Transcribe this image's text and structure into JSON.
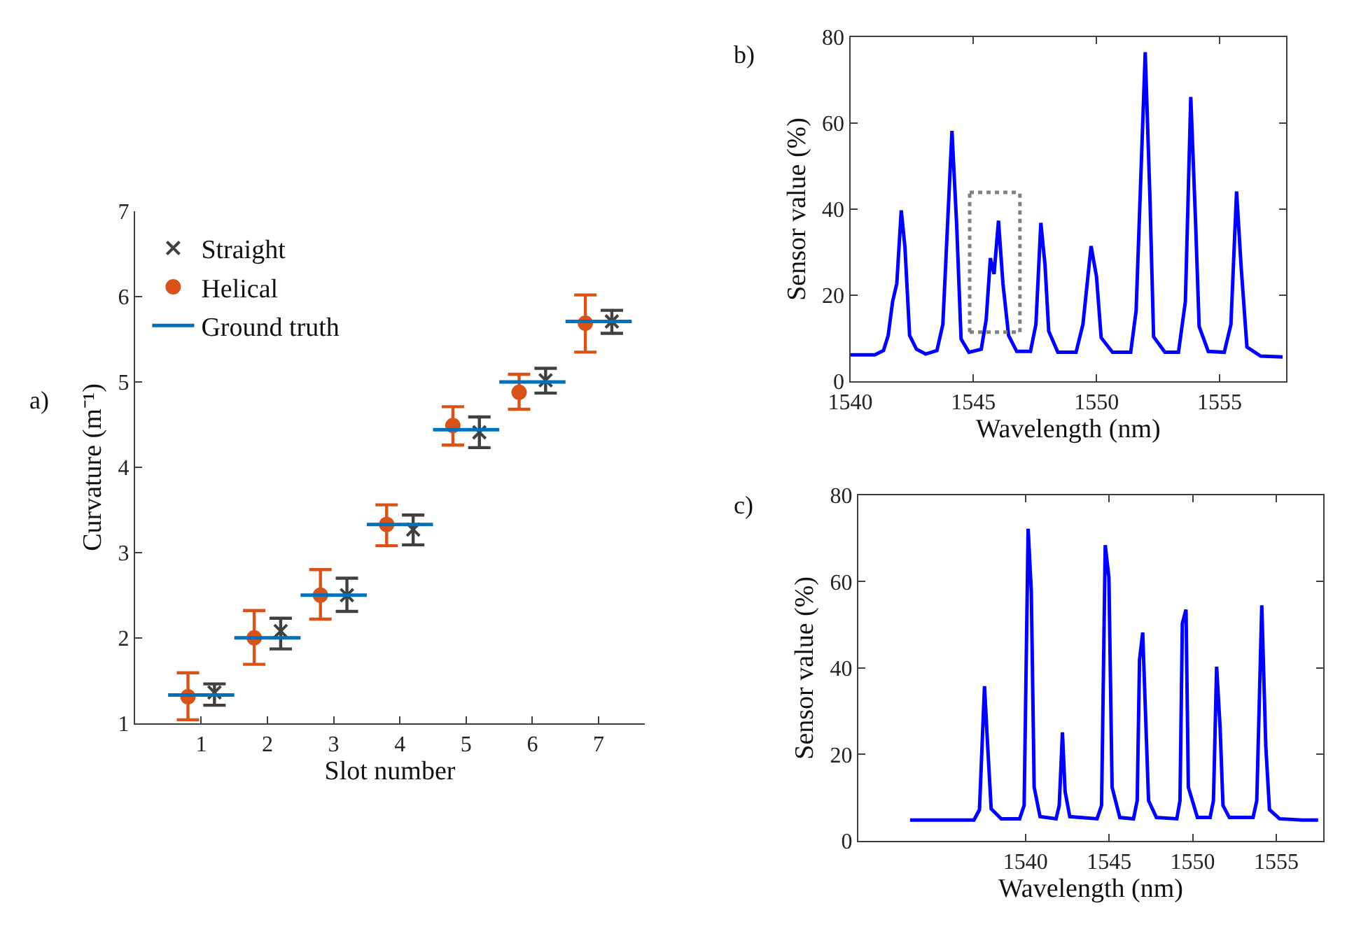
{
  "chart_data": [
    {
      "type": "scatter",
      "xlabel": "Slot number",
      "ylabel": "Curvature (m⁻¹)",
      "annotations": [
        "a)"
      ],
      "xlim": [
        0,
        7.7
      ],
      "xticks": [
        1,
        2,
        3,
        4,
        5,
        6,
        7
      ],
      "ylim": [
        1,
        7
      ],
      "yticks": [
        1,
        2,
        3,
        4,
        5,
        6,
        7
      ],
      "legend": "top left",
      "series": [
        {
          "name": "Straight",
          "type": "scatter",
          "marker": "cross",
          "color": "#404040",
          "x": [
            1.2,
            2.2,
            3.2,
            4.2,
            5.2,
            6.2,
            7.2
          ],
          "values": [
            1.36,
            2.08,
            2.5,
            3.27,
            4.41,
            5.02,
            5.71
          ],
          "errors": [
            [
              1.21,
              1.46
            ],
            [
              1.87,
              2.23
            ],
            [
              2.31,
              2.7
            ],
            [
              3.09,
              3.44
            ],
            [
              4.23,
              4.59
            ],
            [
              4.87,
              5.16
            ],
            [
              5.57,
              5.84
            ]
          ]
        },
        {
          "name": "Helical",
          "type": "scatter",
          "marker": "circle",
          "color": "#d95319",
          "x": [
            0.8,
            1.8,
            2.8,
            3.8,
            4.8,
            5.8,
            6.8
          ],
          "values": [
            1.31,
            2.0,
            2.5,
            3.33,
            4.49,
            4.88,
            5.69
          ],
          "errors": [
            [
              1.04,
              1.59
            ],
            [
              1.69,
              2.32
            ],
            [
              2.22,
              2.8
            ],
            [
              3.08,
              3.56
            ],
            [
              4.26,
              4.71
            ],
            [
              4.68,
              5.09
            ],
            [
              5.35,
              6.02
            ]
          ]
        },
        {
          "name": "Ground truth",
          "type": "line",
          "color": "#0072bd",
          "x": [
            0.5,
            1.5
          ],
          "values": [
            1.33,
            1.33
          ]
        },
        {
          "type": "line",
          "color": "#0072bd",
          "x": [
            1.5,
            2.5
          ],
          "values": [
            2.0,
            2.0
          ]
        },
        {
          "type": "line",
          "color": "#0072bd",
          "x": [
            2.5,
            3.5
          ],
          "values": [
            2.5,
            2.5
          ]
        },
        {
          "type": "line",
          "color": "#0072bd",
          "x": [
            3.5,
            4.5
          ],
          "values": [
            3.33,
            3.33
          ]
        },
        {
          "type": "line",
          "color": "#0072bd",
          "x": [
            4.5,
            5.5
          ],
          "values": [
            4.44,
            4.44
          ]
        },
        {
          "type": "line",
          "color": "#0072bd",
          "x": [
            5.5,
            6.5
          ],
          "values": [
            5.0,
            5.0
          ]
        },
        {
          "type": "line",
          "color": "#0072bd",
          "x": [
            6.5,
            7.5
          ],
          "values": [
            5.71,
            5.71
          ]
        }
      ]
    },
    {
      "type": "line",
      "xlabel": "Wavelength (nm)",
      "ylabel": "Sensor value (%)",
      "annotations": [
        "b)"
      ],
      "xlim": [
        1540,
        1557.7
      ],
      "xticks": [
        1540,
        1545,
        1550,
        1555
      ],
      "ylim": [
        0,
        80
      ],
      "yticks": [
        0,
        20,
        40,
        60,
        80
      ],
      "series": [
        {
          "type": "line",
          "color": "#0000ff",
          "x": [
            1540.0,
            1541.0,
            1541.35,
            1541.54,
            1541.72,
            1541.89,
            1542.07,
            1542.22,
            1542.41,
            1542.69,
            1543.06,
            1543.52,
            1543.76,
            1544.13,
            1544.32,
            1544.5,
            1544.82,
            1545.32,
            1545.52,
            1545.69,
            1545.84,
            1546.02,
            1546.2,
            1546.43,
            1546.76,
            1547.32,
            1547.54,
            1547.74,
            1547.91,
            1548.06,
            1548.43,
            1549.17,
            1549.45,
            1549.78,
            1550.0,
            1550.19,
            1550.65,
            1551.39,
            1551.61,
            1551.98,
            1552.17,
            1552.32,
            1552.78,
            1553.33,
            1553.61,
            1553.83,
            1554.02,
            1554.17,
            1554.54,
            1555.19,
            1555.46,
            1555.69,
            1555.87,
            1556.11,
            1556.67,
            1557.56
          ],
          "values": [
            6.1,
            6.1,
            7.1,
            10.6,
            18.5,
            22.7,
            39.7,
            31.2,
            10.6,
            7.4,
            6.3,
            7.1,
            13.2,
            58.2,
            36.5,
            9.8,
            6.7,
            7.4,
            14.3,
            28.6,
            24.9,
            37.3,
            22.7,
            10.6,
            6.9,
            6.9,
            13.2,
            36.8,
            27.0,
            11.6,
            6.7,
            6.7,
            13.2,
            31.4,
            24.3,
            10.1,
            6.7,
            6.7,
            16.4,
            76.5,
            42.8,
            10.3,
            6.7,
            6.7,
            18.5,
            66.1,
            37.6,
            12.7,
            6.9,
            6.7,
            13.2,
            44.1,
            27.0,
            7.9,
            5.8,
            5.6
          ]
        },
        {
          "type": "line",
          "color": "#808080",
          "line_style": "dotted",
          "x": [
            1544.85,
            1546.89
          ],
          "values": [
            43.9,
            43.9
          ]
        },
        {
          "type": "line",
          "color": "#808080",
          "line_style": "dotted",
          "x": [
            1544.85,
            1546.89
          ],
          "values": [
            11.4,
            11.4
          ]
        },
        {
          "type": "line",
          "color": "#808080",
          "line_style": "dotted",
          "x": [
            1544.85,
            1544.85
          ],
          "values": [
            11.4,
            43.9
          ]
        },
        {
          "type": "line",
          "color": "#808080",
          "line_style": "dotted",
          "x": [
            1546.89,
            1546.89
          ],
          "values": [
            11.4,
            43.9
          ]
        }
      ]
    },
    {
      "type": "line",
      "xlabel": "Wavelength (nm)",
      "ylabel": "Sensor value (%)",
      "annotations": [
        "c)"
      ],
      "xlim": [
        1530,
        1557.8
      ],
      "xticks": [
        1540,
        1545,
        1550,
        1555
      ],
      "ylim": [
        0,
        80
      ],
      "yticks": [
        0,
        20,
        40,
        60,
        80
      ],
      "series": [
        {
          "type": "line",
          "color": "#0000ff",
          "x": [
            1533.1,
            1536.92,
            1537.25,
            1537.55,
            1537.74,
            1537.95,
            1538.55,
            1539.65,
            1539.92,
            1540.16,
            1540.35,
            1540.52,
            1540.87,
            1541.83,
            1542.02,
            1542.21,
            1542.37,
            1542.65,
            1544.28,
            1544.55,
            1544.77,
            1544.99,
            1545.18,
            1545.64,
            1546.46,
            1546.68,
            1546.82,
            1547.01,
            1547.17,
            1547.36,
            1547.83,
            1549.05,
            1549.24,
            1549.38,
            1549.6,
            1549.74,
            1550.28,
            1551.04,
            1551.24,
            1551.43,
            1551.64,
            1551.81,
            1552.19,
            1553.61,
            1553.83,
            1554.13,
            1554.37,
            1554.59,
            1555.19,
            1556.55,
            1557.5
          ],
          "values": [
            4.8,
            4.8,
            7.2,
            35.8,
            21.9,
            7.4,
            5.1,
            5.1,
            8.2,
            72.2,
            57.7,
            12.4,
            5.6,
            5.1,
            8.2,
            25.1,
            11.4,
            5.6,
            5.1,
            8.2,
            68.4,
            60.9,
            12.4,
            5.4,
            5.1,
            9.3,
            41.9,
            48.2,
            30.3,
            9.3,
            5.4,
            5.1,
            9.3,
            50.3,
            53.5,
            12.4,
            5.4,
            5.4,
            9.3,
            40.3,
            26.1,
            8.2,
            5.4,
            5.4,
            9.3,
            54.5,
            21.9,
            7.2,
            5.1,
            4.8,
            4.8
          ]
        }
      ]
    }
  ]
}
